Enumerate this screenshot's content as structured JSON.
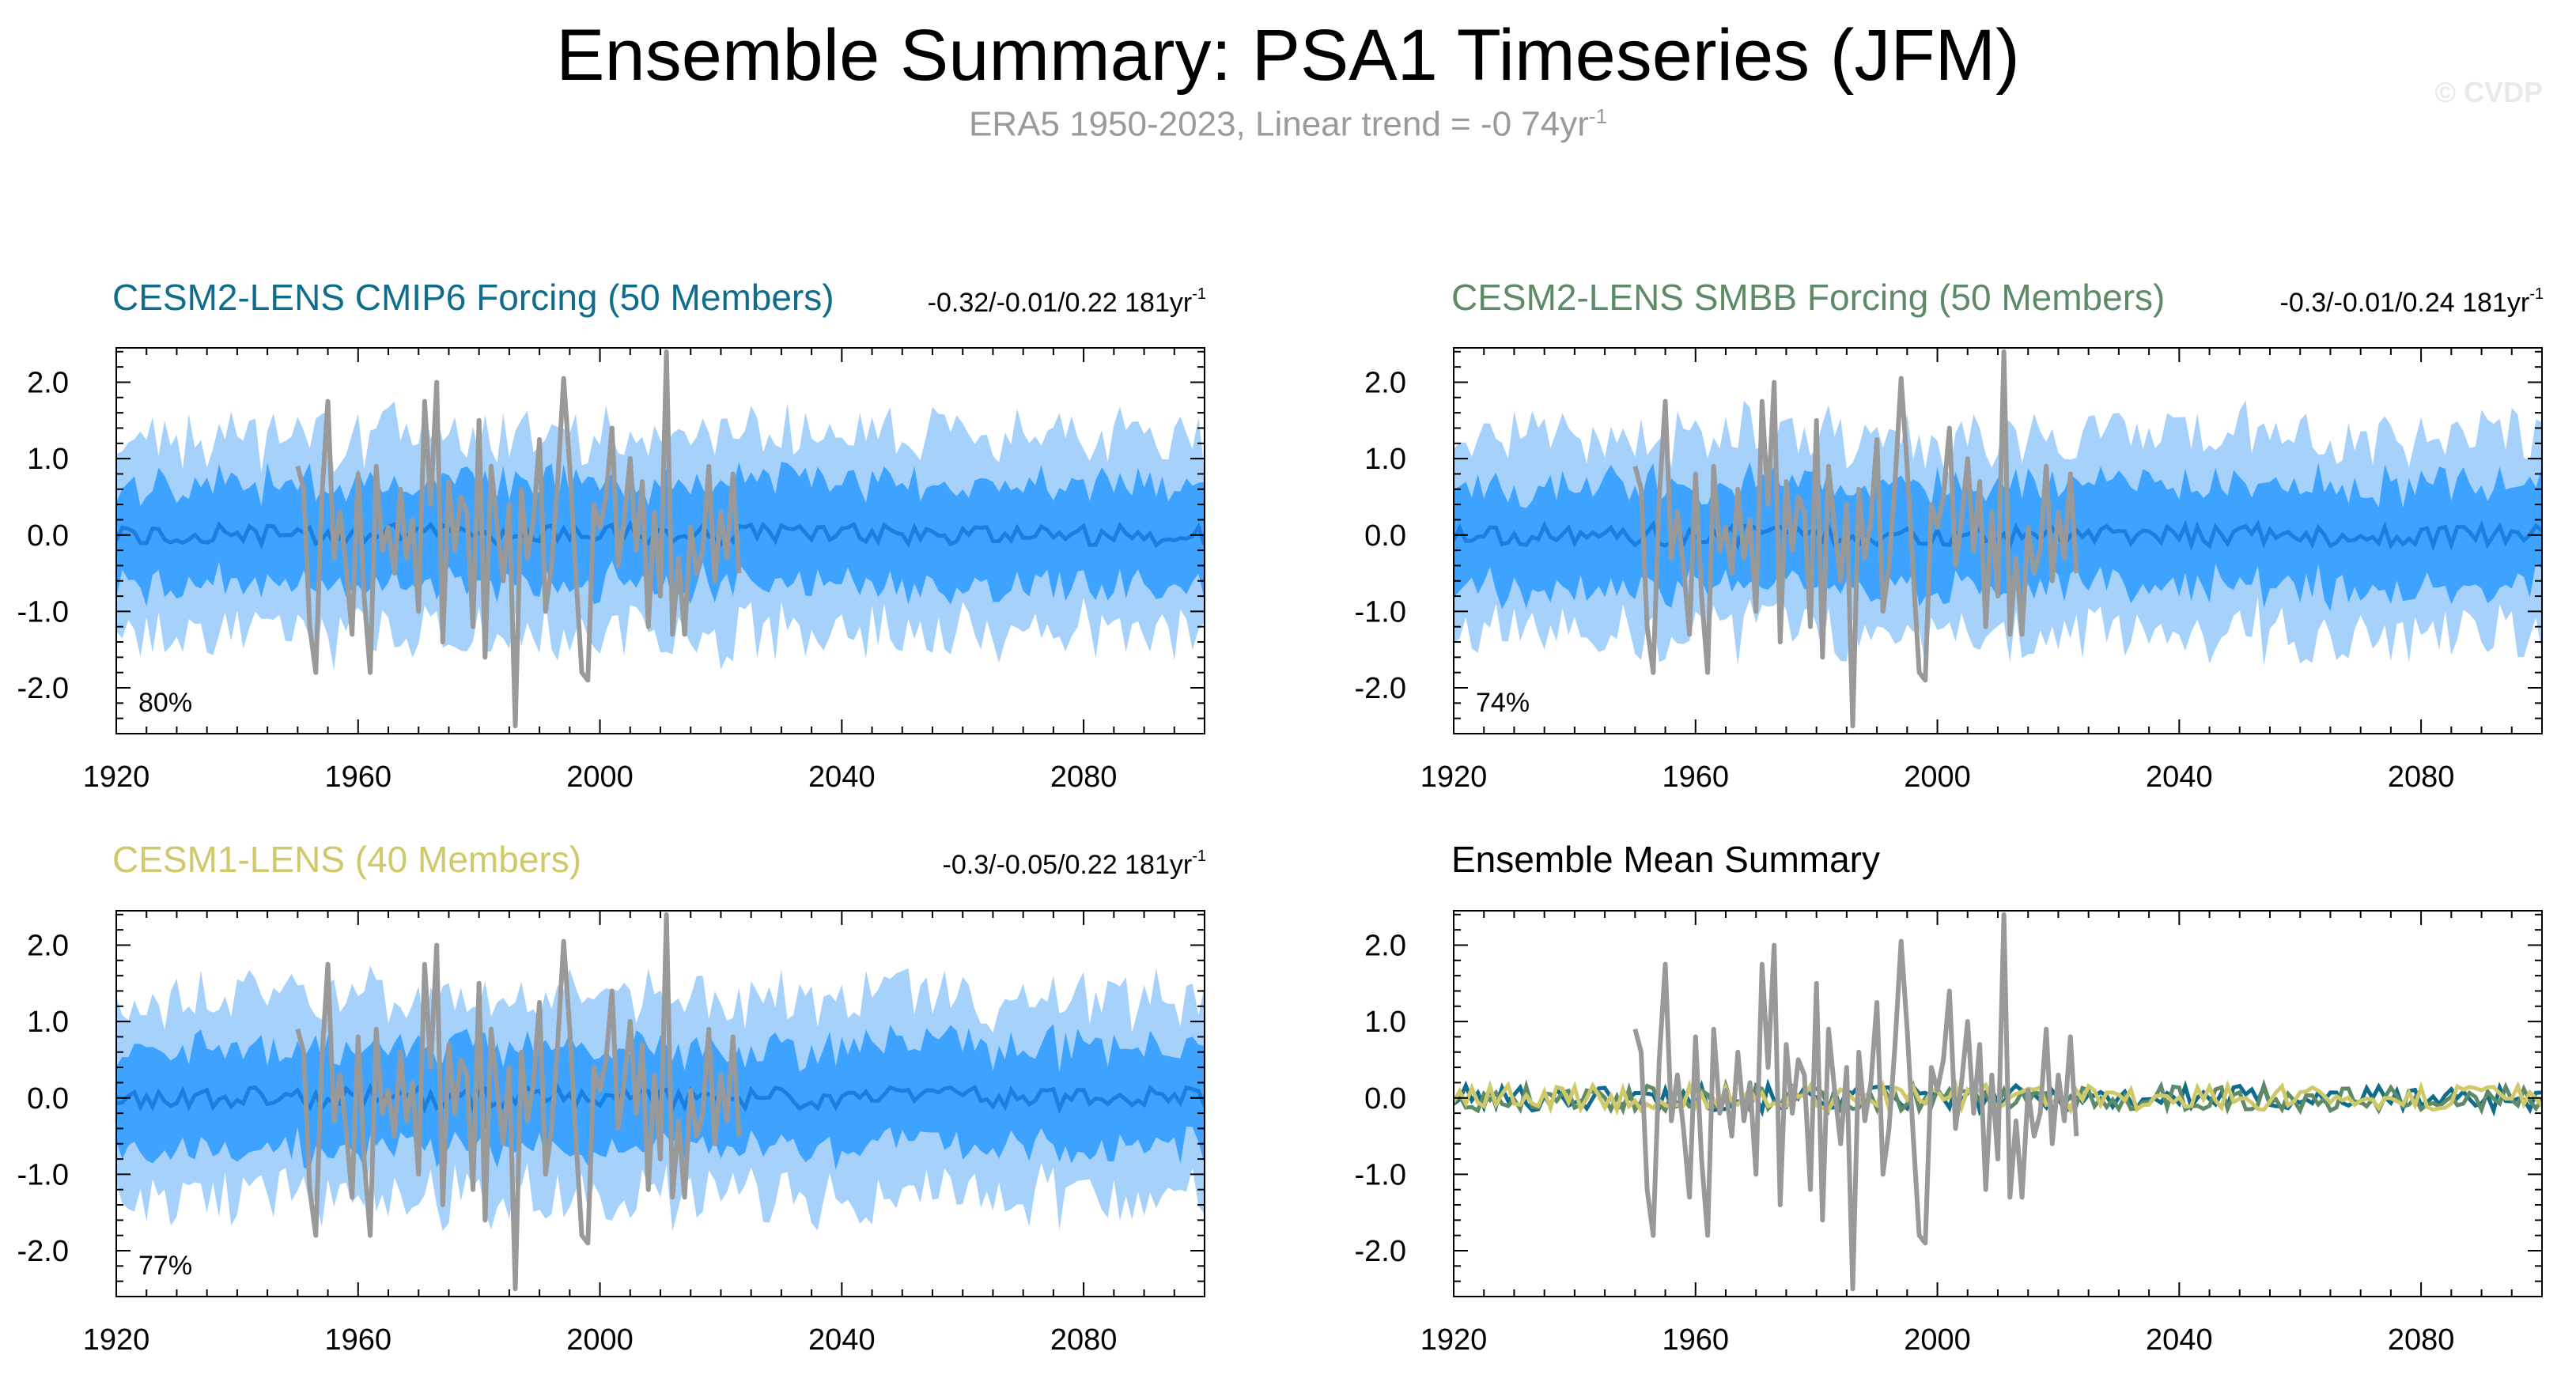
{
  "header": {
    "title": "Ensemble Summary: PSA1 Timeseries (JFM)",
    "subtitle": "ERA5 1950-2023, Linear trend = -0 74yr",
    "subtitle_sup": "-1",
    "watermark": "© CVDP"
  },
  "colors": {
    "outer_band": "#a5d1fb",
    "inner_band": "#3da3ff",
    "ens_mean_line": "#1a7fe0",
    "observations": "#999999",
    "cesm2_cmip6": "#106c8c",
    "cesm2_smbb": "#5e8a68",
    "cesm1": "#cfc96a"
  },
  "chart_data": [
    {
      "id": "cesm2-cmip6",
      "type": "area",
      "title": "CESM2-LENS CMIP6 Forcing (50 Members)",
      "title_color": "#106c8c",
      "trend_label": "-0.32/-0.01/0.22 181yr",
      "trend_sup": "-1",
      "percent_label": "80%",
      "xlim": [
        1920,
        2100
      ],
      "ylim": [
        -2.6,
        2.45
      ],
      "xticks": [
        1920,
        1960,
        2000,
        2040,
        2080
      ],
      "yticks": [
        -2.0,
        -1.0,
        0.0,
        1.0,
        2.0
      ],
      "ytick_labels": [
        "-2.0",
        "-1.0",
        "0.0",
        "1.0",
        "2.0"
      ],
      "outer_band": 1.3,
      "inner_band": 0.65,
      "seed": 11,
      "show_bands": true
    },
    {
      "id": "cesm2-smbb",
      "type": "area",
      "title": "CESM2-LENS SMBB Forcing (50 Members)",
      "title_color": "#5e8a68",
      "trend_label": "-0.3/-0.01/0.24 181yr",
      "trend_sup": "-1",
      "percent_label": "74%",
      "xlim": [
        1920,
        2100
      ],
      "ylim": [
        -2.6,
        2.45
      ],
      "xticks": [
        1920,
        1960,
        2000,
        2040,
        2080
      ],
      "yticks": [
        -2.0,
        -1.0,
        0.0,
        1.0,
        2.0
      ],
      "ytick_labels": [
        "-2.0",
        "-1.0",
        "0.0",
        "1.0",
        "2.0"
      ],
      "outer_band": 1.3,
      "inner_band": 0.65,
      "seed": 23,
      "show_bands": true
    },
    {
      "id": "cesm1",
      "type": "area",
      "title": "CESM1-LENS (40 Members)",
      "title_color": "#cfc96a",
      "trend_label": "-0.3/-0.05/0.22 181yr",
      "trend_sup": "-1",
      "percent_label": "77%",
      "xlim": [
        1920,
        2100
      ],
      "ylim": [
        -2.6,
        2.45
      ],
      "xticks": [
        1920,
        1960,
        2000,
        2040,
        2080
      ],
      "yticks": [
        -2.0,
        -1.0,
        0.0,
        1.0,
        2.0
      ],
      "ytick_labels": [
        "-2.0",
        "-1.0",
        "0.0",
        "1.0",
        "2.0"
      ],
      "outer_band": 1.3,
      "inner_band": 0.65,
      "seed": 37,
      "show_bands": true
    },
    {
      "id": "ensemble-mean-summary",
      "type": "line",
      "title": "Ensemble Mean Summary",
      "title_color": "#000000",
      "trend_label": "",
      "trend_sup": "",
      "percent_label": "",
      "xlim": [
        1920,
        2100
      ],
      "ylim": [
        -2.6,
        2.45
      ],
      "xticks": [
        1920,
        1960,
        2000,
        2040,
        2080
      ],
      "yticks": [
        -2.0,
        -1.0,
        0.0,
        1.0,
        2.0
      ],
      "ytick_labels": [
        "-2.0",
        "-1.0",
        "0.0",
        "1.0",
        "2.0"
      ],
      "seed": 5,
      "show_bands": false,
      "mean_series": [
        {
          "name": "CESM2-LENS CMIP6 Forcing",
          "color": "#106c8c",
          "seed": 101
        },
        {
          "name": "CESM2-LENS SMBB Forcing",
          "color": "#5e8a68",
          "seed": 202
        },
        {
          "name": "CESM1-LENS",
          "color": "#cfc96a",
          "seed": 303
        }
      ]
    }
  ],
  "observations": {
    "name": "ERA5",
    "years": [
      1950,
      1951,
      1952,
      1953,
      1954,
      1955,
      1956,
      1957,
      1958,
      1959,
      1960,
      1961,
      1962,
      1963,
      1964,
      1965,
      1966,
      1967,
      1968,
      1969,
      1970,
      1971,
      1972,
      1973,
      1974,
      1975,
      1976,
      1977,
      1978,
      1979,
      1980,
      1981,
      1982,
      1983,
      1984,
      1985,
      1986,
      1987,
      1988,
      1989,
      1990,
      1991,
      1992,
      1993,
      1994,
      1995,
      1996,
      1997,
      1998,
      1999,
      2000,
      2001,
      2002,
      2003,
      2004,
      2005,
      2006,
      2007,
      2008,
      2009,
      2010,
      2011,
      2012,
      2013,
      2014,
      2015,
      2016,
      2017,
      2018,
      2019,
      2020,
      2021,
      2022,
      2023
    ],
    "values": [
      0.9,
      0.6,
      -1.2,
      -1.8,
      0.5,
      1.75,
      -0.3,
      0.3,
      -0.4,
      -1.3,
      0.8,
      -0.8,
      -1.8,
      0.9,
      -0.2,
      0.1,
      -0.5,
      0.6,
      -0.3,
      0.2,
      -1.0,
      1.75,
      0.4,
      2.0,
      -1.4,
      0.7,
      -0.2,
      0.5,
      0.3,
      -1.2,
      1.5,
      -1.6,
      0.9,
      0.1,
      -0.6,
      0.4,
      -2.5,
      0.6,
      -0.3,
      0.2,
      1.25,
      -1.0,
      -0.4,
      0.7,
      2.05,
      0.9,
      -0.5,
      -1.8,
      -1.9,
      0.4,
      0.1,
      0.5,
      1.4,
      -0.4,
      0.2,
      1.0,
      -0.2,
      0.7,
      -1.2,
      0.3,
      -0.8,
      2.4,
      -1.3,
      -0.3,
      -1.3,
      0.1,
      -0.5,
      -0.2,
      0.9,
      -0.6,
      0.3,
      -0.3,
      0.8,
      -0.5
    ]
  }
}
